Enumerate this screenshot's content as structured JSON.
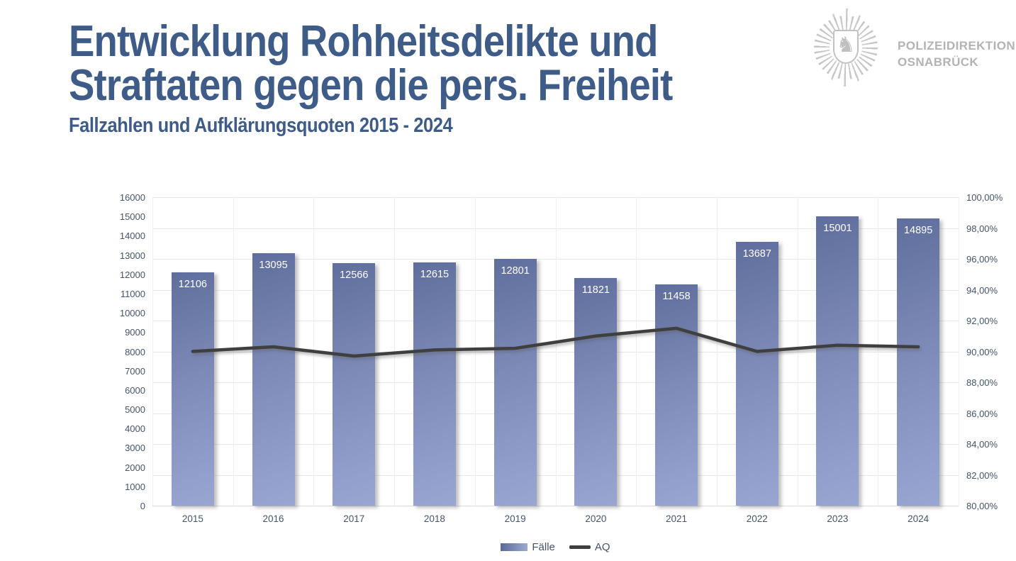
{
  "header": {
    "title_line1": "Entwicklung Rohheitsdelikte und",
    "title_line2": "Straftaten gegen die pers. Freiheit",
    "subtitle": "Fallzahlen und Aufklärungsquoten 2015 - 2024"
  },
  "logo": {
    "org_line1": "POLIZEIDIREKTION",
    "org_line2": "OSNABRÜCK",
    "star_icon": "police-star-with-lower-saxony-horse",
    "horse_glyph": "♞"
  },
  "legend": {
    "bar_label": "Fälle",
    "line_label": "AQ"
  },
  "chart_data": {
    "type": "bar",
    "subtype": "bar+line combo, dual axis",
    "categories": [
      "2015",
      "2016",
      "2017",
      "2018",
      "2019",
      "2020",
      "2021",
      "2022",
      "2023",
      "2024"
    ],
    "series": [
      {
        "name": "Fälle",
        "type": "bar",
        "axis": "left",
        "values": [
          12106,
          13095,
          12566,
          12615,
          12801,
          11821,
          11458,
          13687,
          15001,
          14895
        ],
        "data_labels_shown": true
      },
      {
        "name": "AQ",
        "type": "line",
        "axis": "right",
        "values_percent": [
          90.0,
          90.3,
          89.7,
          90.1,
          90.2,
          91.0,
          91.5,
          90.0,
          90.4,
          90.3
        ],
        "estimated_from_plot": true,
        "data_labels_shown": false
      }
    ],
    "left_axis": {
      "min": 0,
      "max": 16000,
      "step": 1000,
      "ticks": [
        "0",
        "1000",
        "2000",
        "3000",
        "4000",
        "5000",
        "6000",
        "7000",
        "8000",
        "9000",
        "10000",
        "11000",
        "12000",
        "13000",
        "14000",
        "15000",
        "16000"
      ]
    },
    "right_axis": {
      "min": 80,
      "max": 100,
      "step": 2,
      "ticks": [
        "80,00%",
        "82,00%",
        "84,00%",
        "86,00%",
        "88,00%",
        "90,00%",
        "92,00%",
        "94,00%",
        "96,00%",
        "98,00%",
        "100,00%"
      ]
    },
    "grid": "horizontal lines at 2%-steps of right axis plus vertical category-boundary lines",
    "legend_position": "bottom-center"
  },
  "colors": {
    "title": "#3e5c87",
    "axis_labels": "#44546a",
    "bar_gradient_dark": "#5f6e9c",
    "bar_gradient_light": "#9aa6d2",
    "bar_value_label": "#ffffff",
    "aq_line": "#3f3f3f",
    "gridline": "#e5e8ec",
    "logo_gray": "#b3b3b3",
    "background": "#ffffff"
  }
}
